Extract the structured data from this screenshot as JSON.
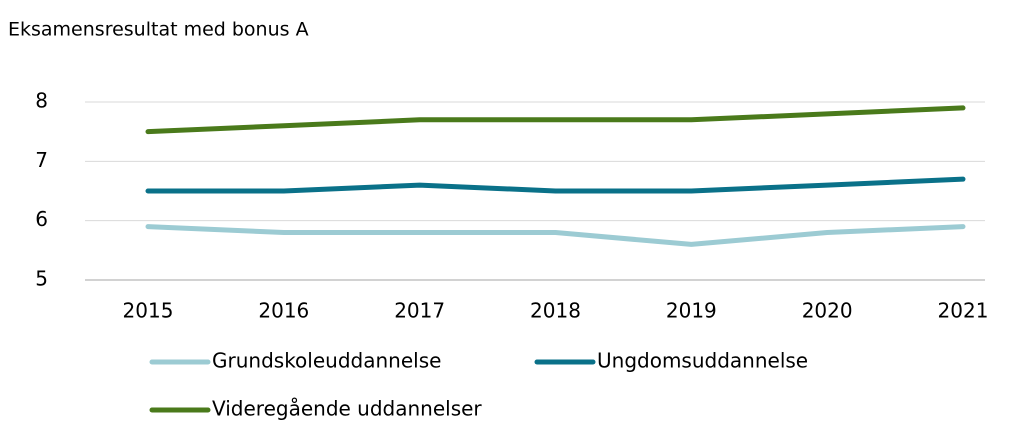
{
  "chart_data": {
    "type": "line",
    "title": "Eksamensresultat med bonus A",
    "categories": [
      "2015",
      "2016",
      "2017",
      "2018",
      "2019",
      "2020",
      "2021"
    ],
    "series": [
      {
        "name": "Grundskoleuddannelse",
        "color": "#9ccbd3",
        "values": [
          5.9,
          5.8,
          5.8,
          5.8,
          5.6,
          5.8,
          5.9
        ]
      },
      {
        "name": "Ungdomsuddannelse",
        "color": "#0a7189",
        "values": [
          6.5,
          6.5,
          6.6,
          6.5,
          6.5,
          6.6,
          6.7
        ]
      },
      {
        "name": "Videregående uddannelser",
        "color": "#4a7a1b",
        "values": [
          7.5,
          7.6,
          7.7,
          7.7,
          7.7,
          7.8,
          7.9
        ]
      }
    ],
    "ylim": [
      5,
      8
    ],
    "yticks": [
      5,
      6,
      7,
      8
    ],
    "grid": true
  }
}
